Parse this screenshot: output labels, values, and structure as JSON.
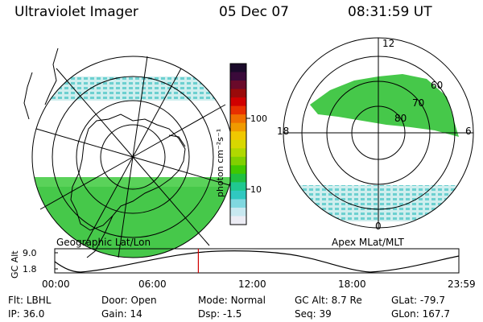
{
  "header": {
    "instrument": "Ultraviolet Imager",
    "date": "05 Dec 07",
    "time": "08:31:59 UT"
  },
  "left_panel": {
    "caption": "Geographic Lat/Lon"
  },
  "right_panel": {
    "caption": "Apex MLat/MLT",
    "mlt_labels": [
      "12",
      "18",
      "6",
      "0"
    ],
    "mlat_labels": [
      "60",
      "70",
      "80"
    ]
  },
  "colorbar": {
    "unit_label": "photon cm⁻²s⁻¹",
    "ticks": [
      "100",
      "10"
    ],
    "colors": [
      "#1a0a2a",
      "#3a0a3a",
      "#6a0a2a",
      "#9a0a0a",
      "#d00000",
      "#e83000",
      "#f07000",
      "#f09a00",
      "#f0c800",
      "#d8d800",
      "#b0d800",
      "#80d000",
      "#40c800",
      "#20c040",
      "#20c890",
      "#30c8c0",
      "#80d8e0",
      "#c8e8f0",
      "#ececf4"
    ]
  },
  "altitude_plot": {
    "ylabel": "GC Alt",
    "yticks": [
      "9.0",
      "1.8"
    ],
    "xticks": [
      "00:00",
      "06:00",
      "12:00",
      "18:00",
      "23:59"
    ],
    "current_time_hours": 8.53
  },
  "info": {
    "flt_label": "Flt:",
    "flt_value": "LBHL",
    "ip_label": "IP:",
    "ip_value": "36.0",
    "door_label": "Door:",
    "door_value": "Open",
    "gain_label": "Gain:",
    "gain_value": "14",
    "mode_label": "Mode:",
    "mode_value": "Normal",
    "dsp_label": "Dsp:",
    "dsp_value": "-1.5",
    "gcalt_label": "GC Alt:",
    "gcalt_value": "8.7 Re",
    "seq_label": "Seq:",
    "seq_value": "39",
    "glat_label": "GLat:",
    "glat_value": "-79.7",
    "glon_label": "GLon:",
    "glon_value": "167.7"
  },
  "colors": {
    "green": "#3cc83c",
    "cyan": "#7fd8d8",
    "marker": "#d00000"
  }
}
